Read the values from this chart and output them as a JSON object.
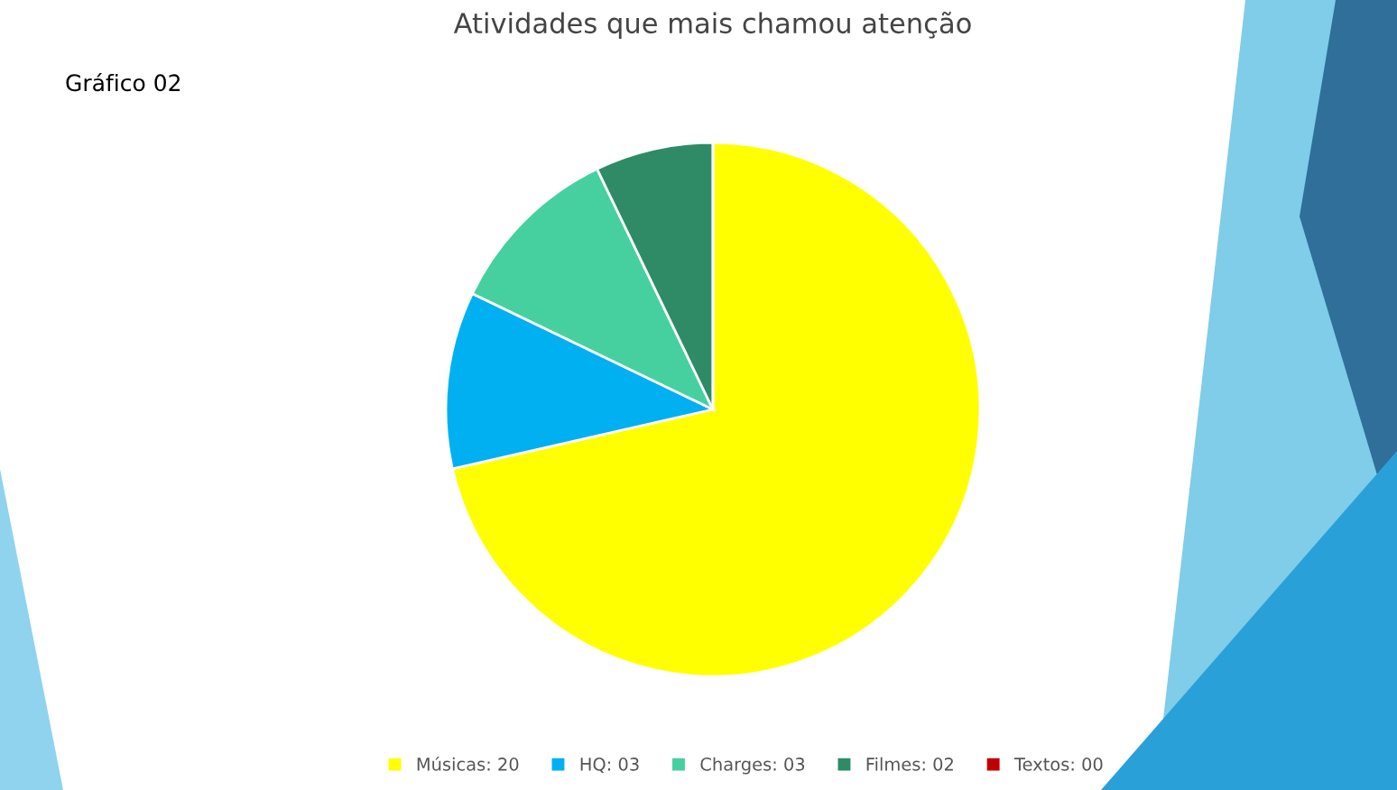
{
  "chart_data": {
    "type": "pie",
    "title": "Atividades que mais chamou atenção",
    "categories": [
      "Músicas: 20",
      "HQ: 03",
      "Charges: 03",
      "Filmes: 02",
      "Textos: 00"
    ],
    "values": [
      20,
      3,
      3,
      2,
      0
    ],
    "colors": [
      "#ffff00",
      "#00b0f0",
      "#46d0a0",
      "#2e8b66",
      "#c00000"
    ],
    "legend": "bottom",
    "annotations": [
      "Gráfico 02"
    ]
  }
}
